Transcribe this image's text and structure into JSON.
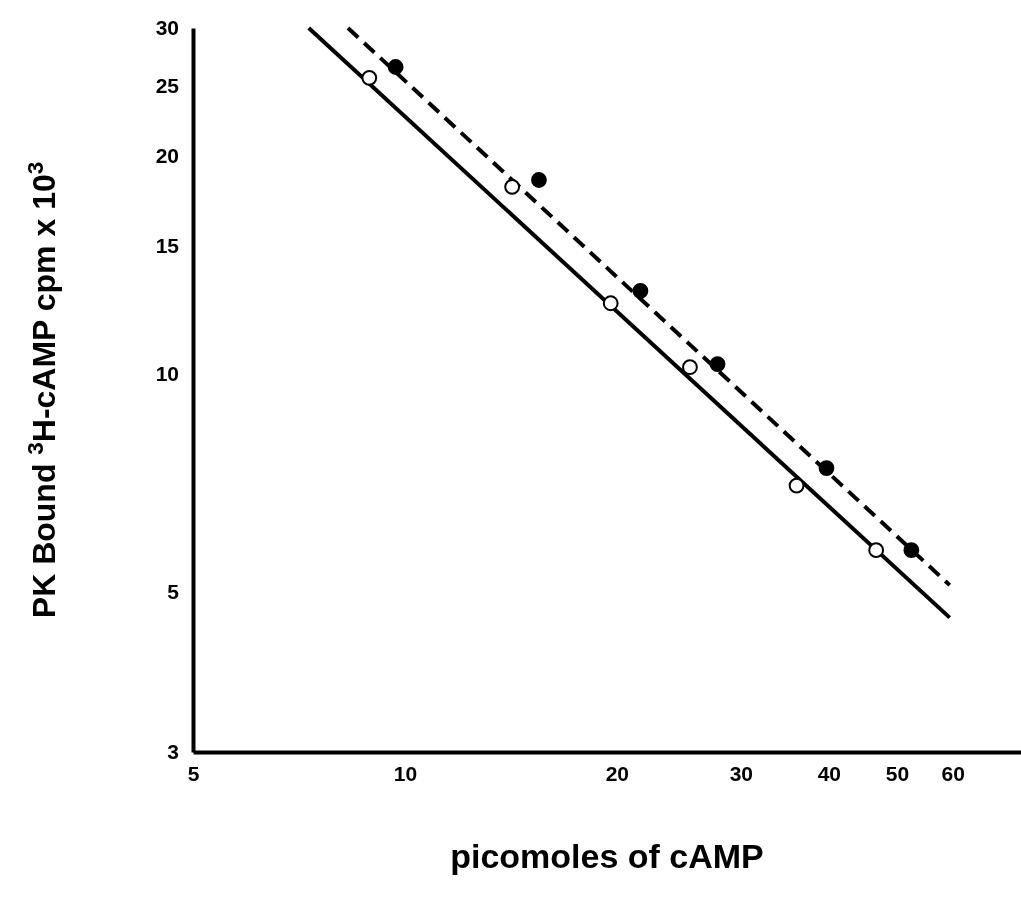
{
  "chart_data": {
    "type": "scatter",
    "xlabel": "picomoles of cAMP",
    "ylabel": "PK Bound $^{3}$H-cAMP cpm x 10$^{3}$",
    "log": "xy",
    "xlim": [
      5,
      75
    ],
    "ylim": [
      3,
      30
    ],
    "xticks": [
      5,
      10,
      20,
      30,
      40,
      50,
      60
    ],
    "yticks": [
      3,
      5,
      10,
      15,
      20,
      25,
      30
    ],
    "series": [
      {
        "marker": "circle",
        "color": "#ffffff",
        "x": [
          8.9,
          14.2,
          19.6,
          25.4,
          36.0,
          46.7
        ],
        "values": [
          25.6,
          18.1,
          12.5,
          10.2,
          7.0,
          5.7
        ]
      },
      {
        "marker": "circle",
        "color": "#000000",
        "x": [
          9.7,
          15.5,
          21.6,
          27.8,
          39.7,
          52.4
        ],
        "values": [
          26.5,
          18.5,
          13.0,
          10.3,
          7.4,
          5.7
        ]
      },
      {
        "type": "line",
        "color": "#000000",
        "line_style": "solid",
        "x": [
          7.3,
          59.4
        ],
        "values": [
          30,
          4.6
        ]
      },
      {
        "type": "line",
        "color": "#000000",
        "line_style": "dashed",
        "x": [
          8.3,
          59.4
        ],
        "values": [
          30,
          5.1
        ]
      }
    ]
  }
}
